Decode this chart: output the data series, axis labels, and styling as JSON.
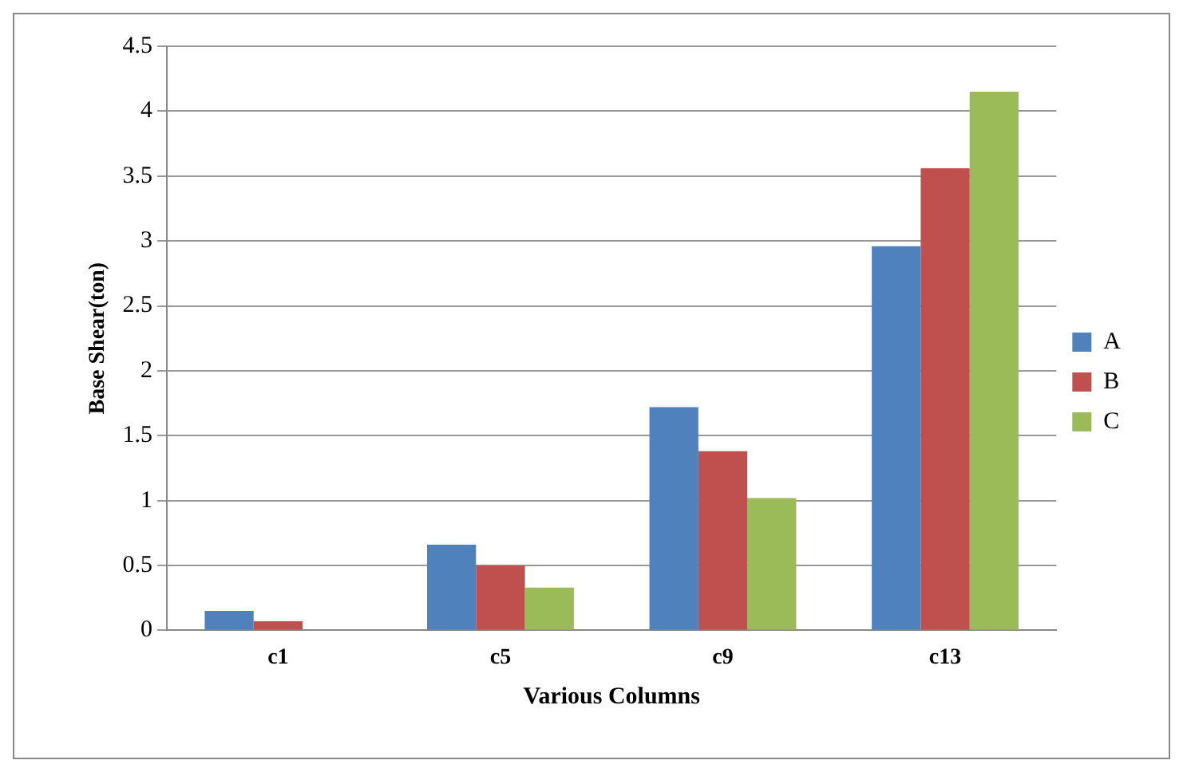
{
  "chart_data": {
    "type": "bar",
    "xlabel": "Various Columns",
    "ylabel": "Base Shear(ton)",
    "categories": [
      "c1",
      "c5",
      "c9",
      "c13"
    ],
    "series": [
      {
        "name": "A",
        "color": "#4f81bd",
        "values": [
          0.15,
          0.66,
          1.72,
          2.96
        ]
      },
      {
        "name": "B",
        "color": "#c0504d",
        "values": [
          0.07,
          0.5,
          1.38,
          3.56
        ]
      },
      {
        "name": "C",
        "color": "#9bbb59",
        "values": [
          0,
          0.33,
          1.02,
          4.15
        ]
      }
    ],
    "ylim": [
      0,
      4.5
    ],
    "yticks": [
      0,
      0.5,
      1,
      1.5,
      2,
      2.5,
      3,
      3.5,
      4,
      4.5
    ],
    "grid": "y",
    "legend": "right"
  }
}
